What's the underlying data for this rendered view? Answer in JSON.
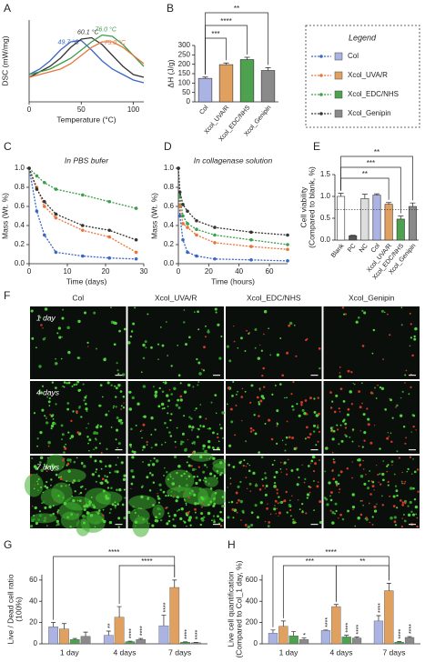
{
  "chart_data": [
    {
      "type": "line",
      "panel": "A",
      "xlabel": "Temperature (°C)",
      "ylabel": "DSC (mW/mg)",
      "x": [
        0,
        10,
        20,
        30,
        40,
        50,
        60,
        70,
        80,
        90,
        100,
        110
      ],
      "xlim": [
        0,
        110
      ],
      "ylim": [
        0,
        0.3
      ],
      "xticks": [
        0,
        50,
        100
      ],
      "series": [
        {
          "color": "#3a66c4",
          "peak_label": "49.7 °C",
          "values": [
            0.1,
            0.12,
            0.15,
            0.19,
            0.22,
            0.225,
            0.19,
            0.15,
            0.12,
            0.1,
            0.08,
            0.07
          ]
        },
        {
          "color": "#333333",
          "peak_label": "60.1 °C",
          "values": [
            0.09,
            0.11,
            0.13,
            0.16,
            0.2,
            0.23,
            0.235,
            0.21,
            0.17,
            0.13,
            0.1,
            0.09
          ]
        },
        {
          "color": "#3c9c4a",
          "peak_label": "76.0 °C",
          "values": [
            0.1,
            0.11,
            0.12,
            0.14,
            0.16,
            0.19,
            0.22,
            0.245,
            0.24,
            0.21,
            0.17,
            0.13
          ]
        },
        {
          "color": "#e8743b",
          "peak_label": "75.0 °C",
          "values": [
            0.09,
            0.1,
            0.11,
            0.12,
            0.14,
            0.17,
            0.2,
            0.22,
            0.22,
            0.2,
            0.17,
            0.14
          ]
        }
      ]
    },
    {
      "type": "bar",
      "panel": "B",
      "ylabel": "ΔH (J/g)",
      "categories": [
        "Col",
        "Xcol_UVA/R",
        "Xcol_EDC/NHS",
        "Xcol_Genipin"
      ],
      "values": [
        125,
        198,
        225,
        167
      ],
      "errors": [
        7,
        9,
        12,
        15
      ],
      "colors": [
        "#aab3e2",
        "#e0a060",
        "#4ea14e",
        "#8a8a8a"
      ],
      "ylim": [
        0,
        300
      ],
      "yticks": [
        0,
        50,
        100,
        150,
        200,
        250,
        300
      ],
      "brackets": [
        "***",
        "****",
        "**"
      ]
    },
    {
      "type": "line",
      "panel": "C",
      "title": "In PBS bufer",
      "xlabel": "Time (days)",
      "ylabel": "Mass (Wt. %)",
      "dashed": true,
      "markers": true,
      "x": [
        0,
        2,
        4,
        7,
        14,
        21,
        28
      ],
      "xlim": [
        0,
        30
      ],
      "ylim": [
        0,
        1
      ],
      "xticks": [
        0,
        10,
        20,
        30
      ],
      "yticks": [
        {
          "value": 0,
          "label": "0.0"
        },
        0.2,
        0.4,
        0.6,
        0.8,
        {
          "value": 1,
          "label": "1.0"
        }
      ],
      "series": [
        {
          "color": "#3a66c4",
          "values": [
            1.0,
            0.55,
            0.3,
            0.12,
            0.08,
            0.06,
            0.05
          ]
        },
        {
          "color": "#e8743b",
          "values": [
            1.0,
            0.8,
            0.6,
            0.48,
            0.35,
            0.28,
            0.12
          ]
        },
        {
          "color": "#3c9c4a",
          "values": [
            1.0,
            0.92,
            0.85,
            0.78,
            0.72,
            0.65,
            0.58
          ]
        },
        {
          "color": "#333333",
          "values": [
            1.0,
            0.78,
            0.65,
            0.52,
            0.4,
            0.35,
            0.25
          ]
        }
      ]
    },
    {
      "type": "line",
      "panel": "D",
      "title": "In collagenase solution",
      "xlabel": "Time (hours)",
      "ylabel": "Mass (Wt. %)",
      "dashed": true,
      "markers": true,
      "x": [
        0,
        1,
        3,
        6,
        12,
        24,
        48,
        72
      ],
      "xlim": [
        0,
        72
      ],
      "ylim": [
        0,
        1
      ],
      "xticks": [
        0,
        20,
        40,
        60
      ],
      "yticks": [
        {
          "value": 0,
          "label": "0.0"
        },
        0.2,
        0.4,
        0.6,
        0.8,
        {
          "value": 1,
          "label": "1.0"
        }
      ],
      "series": [
        {
          "color": "#3a66c4",
          "values": [
            1.0,
            0.5,
            0.25,
            0.12,
            0.08,
            0.05,
            0.04,
            0.03
          ]
        },
        {
          "color": "#e8743b",
          "values": [
            1.0,
            0.6,
            0.42,
            0.38,
            0.3,
            0.22,
            0.18,
            0.15
          ]
        },
        {
          "color": "#3c9c4a",
          "values": [
            1.0,
            0.7,
            0.5,
            0.42,
            0.36,
            0.3,
            0.25,
            0.2
          ]
        },
        {
          "color": "#333333",
          "values": [
            1.0,
            0.75,
            0.62,
            0.55,
            0.45,
            0.38,
            0.33,
            0.3
          ]
        }
      ]
    },
    {
      "type": "bar",
      "panel": "E",
      "ylabel": [
        "Cell viability",
        "(Compared to blank, %)"
      ],
      "categories": [
        "Blank",
        "PC",
        "NC",
        "Col",
        "Xcol_UVA/R",
        "Xcol_EDC/NHS",
        "Xcol_Genipin"
      ],
      "values": [
        1.0,
        0.1,
        0.95,
        1.03,
        0.82,
        0.48,
        0.77
      ],
      "errors": [
        0.07,
        0.01,
        0.1,
        0.03,
        0.04,
        0.07,
        0.08
      ],
      "colors": [
        "#ffffff",
        "#555555",
        "#dddddd",
        "#aab3e2",
        "#e0a060",
        "#4ea14e",
        "#8a8a8a"
      ],
      "ylim": [
        0,
        1.5
      ],
      "yticks": [
        {
          "value": 0,
          "label": "0.0"
        },
        0.5,
        {
          "value": 1,
          "label": "1.0"
        },
        1.5
      ],
      "refline": 0.7,
      "brackets": [
        "**",
        "***",
        "**"
      ]
    },
    {
      "type": "image_grid",
      "panel": "F",
      "columns": [
        "Col",
        "Xcol_UVA/R",
        "Xcol_EDC/NHS",
        "Xcol_Genipin"
      ],
      "rows": [
        "1 day",
        "4 days",
        "7 days"
      ]
    },
    {
      "type": "grouped_bar",
      "panel": "G",
      "ylabel": [
        "Live / Dead cell ratio",
        "(100%)"
      ],
      "categories": [
        "1 day",
        "4 days",
        "7 days"
      ],
      "ylim": [
        0,
        65
      ],
      "yticks": [
        0,
        20,
        40,
        60
      ],
      "series": [
        {
          "color": "#aab3e2",
          "values": [
            16,
            8,
            17
          ],
          "errors": [
            4,
            4,
            10
          ],
          "stars": [
            null,
            "**",
            "****"
          ]
        },
        {
          "color": "#e0a060",
          "values": [
            14,
            25,
            53
          ],
          "errors": [
            5,
            10,
            7
          ],
          "stars": [
            null,
            null,
            null
          ]
        },
        {
          "color": "#4ea14e",
          "values": [
            4,
            2,
            1.5
          ],
          "errors": [
            1,
            0.5,
            0.3
          ],
          "stars": [
            null,
            "****",
            "****"
          ]
        },
        {
          "color": "#8a8a8a",
          "values": [
            7,
            4,
            1
          ],
          "errors": [
            4,
            1,
            0.3
          ],
          "stars": [
            null,
            "****",
            "****"
          ]
        }
      ],
      "brackets": [
        "****",
        "****"
      ]
    },
    {
      "type": "grouped_bar",
      "panel": "H",
      "ylabel": [
        "Live cell quantification",
        "(Compared to Col_1 day, %)"
      ],
      "categories": [
        "1 day",
        "4 days",
        "7 days"
      ],
      "ylim": [
        0,
        650
      ],
      "yticks": [
        0,
        200,
        400,
        600
      ],
      "series": [
        {
          "color": "#aab3e2",
          "values": [
            100,
            125,
            215
          ],
          "errors": [
            30,
            5,
            50
          ],
          "stars": [
            null,
            "****",
            "****"
          ]
        },
        {
          "color": "#e0a060",
          "values": [
            165,
            350,
            500
          ],
          "errors": [
            50,
            20,
            70
          ],
          "stars": [
            null,
            null,
            null
          ]
        },
        {
          "color": "#4ea14e",
          "values": [
            75,
            65,
            15
          ],
          "errors": [
            40,
            15,
            5
          ],
          "stars": [
            null,
            "****",
            "****"
          ]
        },
        {
          "color": "#8a8a8a",
          "values": [
            40,
            55,
            60
          ],
          "errors": [
            15,
            8,
            8
          ],
          "stars": [
            "*",
            "****",
            "****"
          ]
        }
      ],
      "brackets": [
        "****",
        "***",
        "**"
      ]
    }
  ],
  "legend": {
    "title": "Legend",
    "entries": [
      {
        "name": "Col",
        "line_color": "#3a66c4",
        "bar_color": "#aab3e2"
      },
      {
        "name": "Xcol_UVA/R",
        "line_color": "#e8743b",
        "bar_color": "#e0a060"
      },
      {
        "name": "Xcol_EDC/NHS",
        "line_color": "#3c9c4a",
        "bar_color": "#4ea14e"
      },
      {
        "name": "Xcol_Genipin",
        "line_color": "#333333",
        "bar_color": "#8a8a8a"
      }
    ]
  }
}
